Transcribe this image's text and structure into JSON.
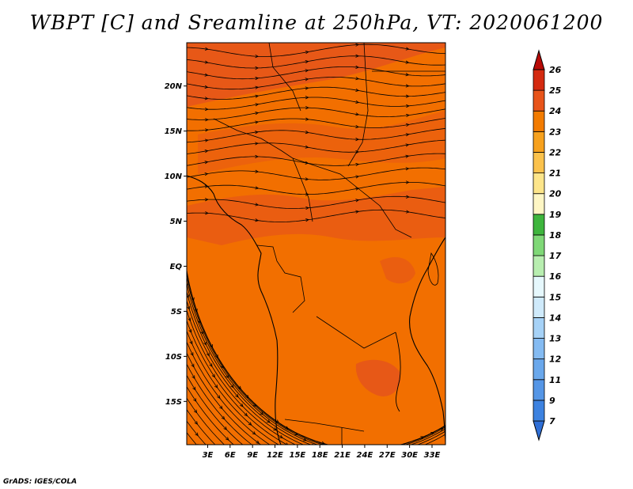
{
  "chart_data": {
    "type": "heatmap",
    "title": "WBPT [C] and Sreamline at 250hPa, VT: 2020061200",
    "xlabel": "",
    "ylabel": "",
    "x_ticks": [
      "3E",
      "6E",
      "9E",
      "12E",
      "15E",
      "18E",
      "21E",
      "24E",
      "27E",
      "30E",
      "33E"
    ],
    "x_tick_values": [
      3,
      6,
      9,
      12,
      15,
      18,
      21,
      24,
      27,
      30,
      33
    ],
    "y_ticks": [
      "20N",
      "15N",
      "10N",
      "5N",
      "EQ",
      "5S",
      "10S",
      "15S"
    ],
    "y_tick_values": [
      20,
      15,
      10,
      5,
      0,
      -5,
      -10,
      -15
    ],
    "xlim": [
      0.2,
      34.8
    ],
    "ylim": [
      -19.8,
      24.8
    ],
    "colorbar": {
      "labels": [
        "7",
        "9",
        "11",
        "12",
        "13",
        "14",
        "15",
        "16",
        "17",
        "18",
        "19",
        "20",
        "21",
        "22",
        "23",
        "24",
        "25",
        "26"
      ],
      "colors": [
        "#2f6fd6",
        "#3d82e0",
        "#5596e6",
        "#6aa8ec",
        "#84bbf2",
        "#a6d2f7",
        "#cfeafb",
        "#e6f8fd",
        "#b8eeb0",
        "#7fd877",
        "#3eb53d",
        "#fef6c4",
        "#fde58a",
        "#fbc24c",
        "#f7a11d",
        "#f27b00",
        "#e8541a",
        "#d42a10",
        "#b80a06"
      ]
    },
    "field_colors": {
      "dominant": "#f26f00",
      "warm_band": "#e6561a",
      "coast": "#000000"
    }
  },
  "footer": {
    "credit": "GrADS: IGES/COLA"
  }
}
